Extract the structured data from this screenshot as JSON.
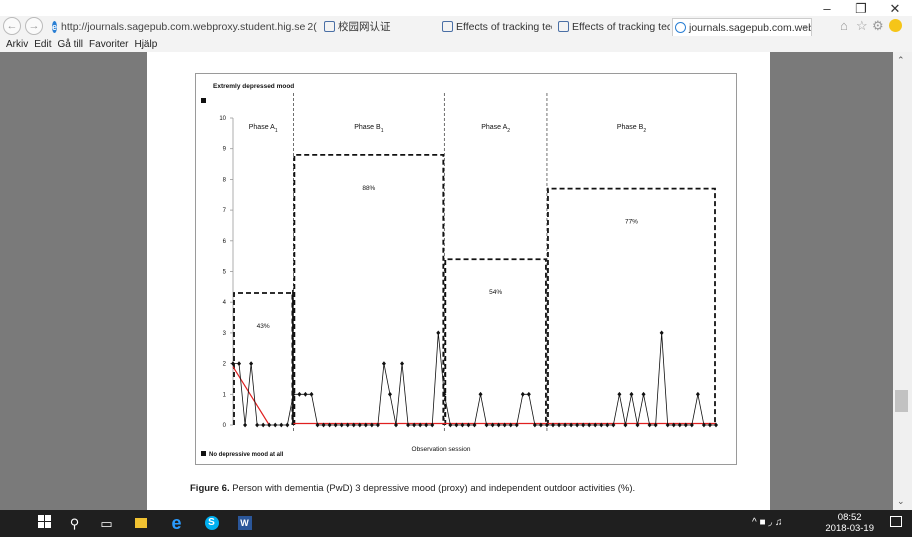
{
  "browser": {
    "address": "http://journals.sagepub.com.webproxy.student.hig.se",
    "address_suffix": "2( ▾ ↻",
    "tabs": [
      {
        "label": "校园网认证",
        "active": false
      },
      {
        "label": "Effects of tracking technolog...",
        "active": false
      },
      {
        "label": "Effects of tracking technolog...",
        "active": false
      },
      {
        "label": "journals.sagepub.com.web...",
        "active": true
      }
    ],
    "menu": [
      "Arkiv",
      "Edit",
      "Gå till",
      "Favoriter",
      "Hjälp"
    ],
    "window_controls": [
      "–",
      "❐",
      "✕"
    ],
    "toolbar_icons": [
      "home-icon",
      "star-icon",
      "gear-icon",
      "smiley-icon"
    ]
  },
  "figure": {
    "caption_bold": "Figure 6.",
    "caption_rest": " Person with dementia (PwD) 3 depressive mood (proxy) and independent outdoor activities (%)."
  },
  "chart_data": {
    "type": "line",
    "top_label": "Extremly depressed mood",
    "bottom_label": "No depressive mood at all",
    "xlabel": "Observation session",
    "ylim": [
      0,
      10
    ],
    "yticks": [
      0,
      1,
      2,
      3,
      4,
      5,
      6,
      7,
      8,
      9,
      10
    ],
    "phases": [
      {
        "name": "Phase A",
        "sub": "1",
        "start": 0,
        "end": 10,
        "percent": 43,
        "percent_label": "43%"
      },
      {
        "name": "Phase B",
        "sub": "1",
        "start": 10,
        "end": 35,
        "percent": 88,
        "percent_label": "88%"
      },
      {
        "name": "Phase A",
        "sub": "2",
        "start": 35,
        "end": 52,
        "percent": 54,
        "percent_label": "54%"
      },
      {
        "name": "Phase B",
        "sub": "2",
        "start": 52,
        "end": 80,
        "percent": 77,
        "percent_label": "77%"
      }
    ],
    "series": [
      {
        "values": [
          2,
          2,
          0,
          2,
          0,
          0,
          0,
          0,
          0,
          0,
          1,
          1,
          1,
          1,
          0,
          0,
          0,
          0,
          0,
          0,
          0,
          0,
          0,
          0,
          0,
          2,
          1,
          0,
          2,
          0,
          0,
          0,
          0,
          0,
          3,
          1,
          0,
          0,
          0,
          0,
          0,
          1,
          0,
          0,
          0,
          0,
          0,
          0,
          1,
          1,
          0,
          0,
          0,
          0,
          0,
          0,
          0,
          0,
          0,
          0,
          0,
          0,
          0,
          0,
          1,
          0,
          1,
          0,
          1,
          0,
          0,
          3,
          0,
          0,
          0,
          0,
          0,
          1,
          0,
          0,
          0
        ]
      }
    ],
    "trend_lines": [
      {
        "color": "#e02020",
        "x": [
          0,
          6
        ],
        "y": [
          1.9,
          0
        ]
      },
      {
        "color": "#e02020",
        "x": [
          10,
          80
        ],
        "y": [
          0.05,
          0.05
        ]
      }
    ]
  },
  "taskbar": {
    "time": "08:52",
    "date": "2018-03-19",
    "icons": [
      "windows-icon",
      "search-icon",
      "task-view-icon",
      "file-explorer-icon",
      "edge-icon",
      "skype-icon",
      "word-icon"
    ]
  }
}
